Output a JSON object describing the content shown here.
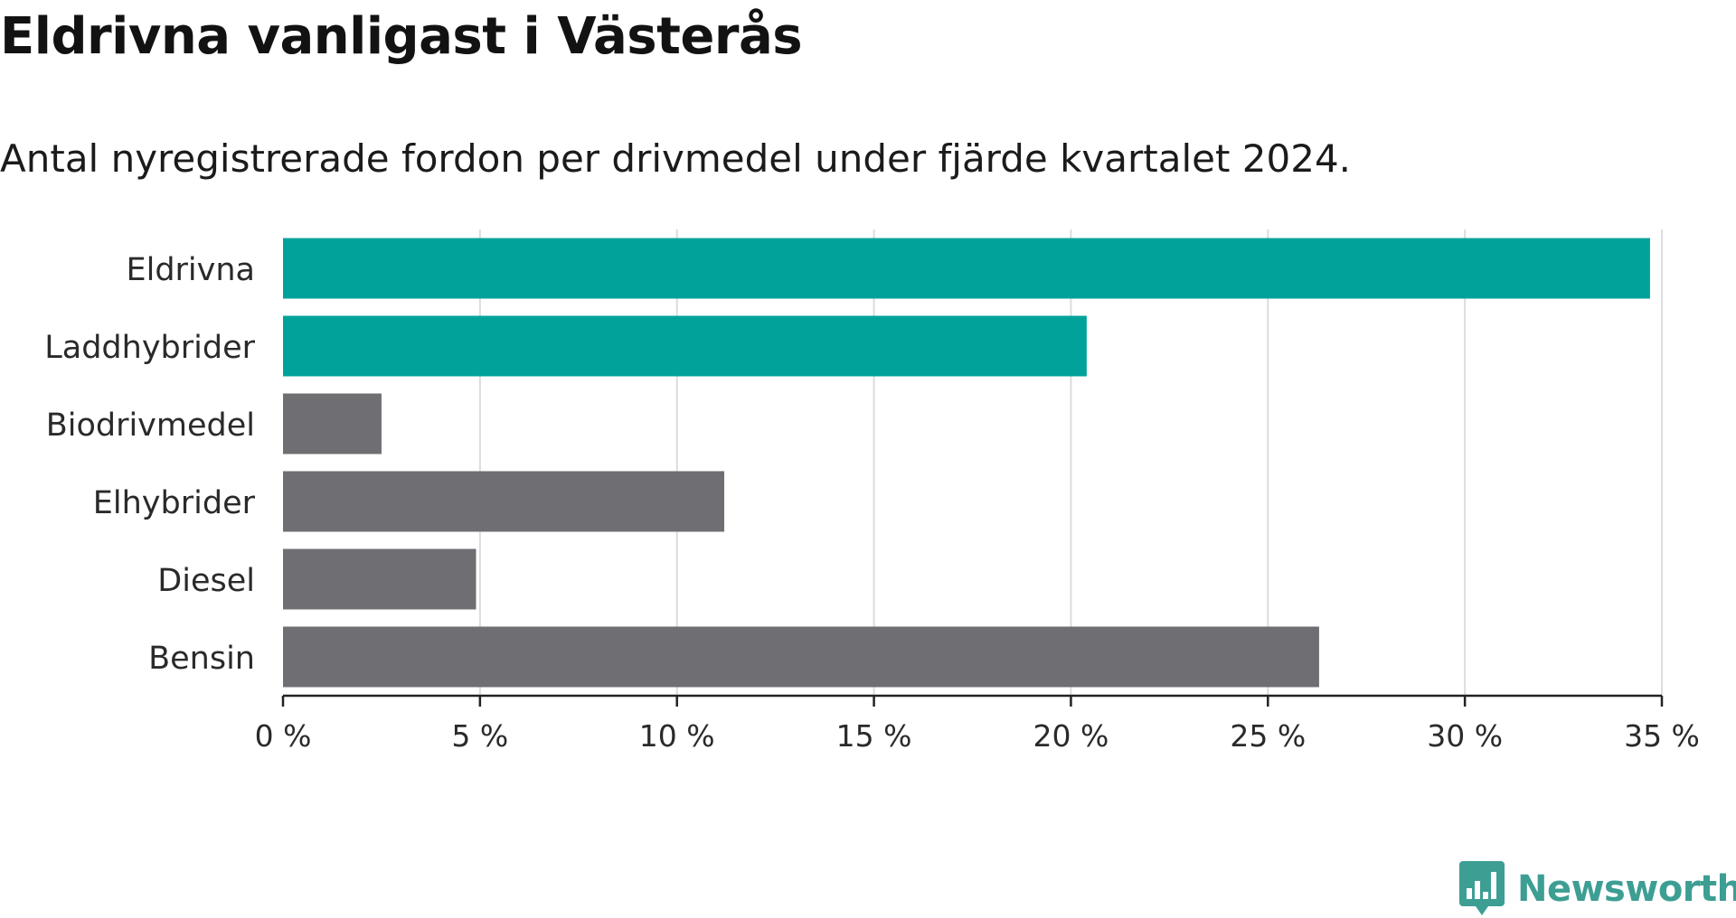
{
  "header": {
    "title": "Eldrivna vanligast i Västerås",
    "subtitle": "Antal nyregistrerade fordon per drivmedel under fjärde kvartalet 2024."
  },
  "chart_data": {
    "type": "bar",
    "orientation": "horizontal",
    "categories": [
      "Eldrivna",
      "Laddhybrider",
      "Biodrivmedel",
      "Elhybrider",
      "Diesel",
      "Bensin"
    ],
    "values": [
      34.7,
      20.4,
      2.5,
      11.2,
      4.9,
      26.3
    ],
    "highlight": [
      true,
      true,
      false,
      false,
      false,
      false
    ],
    "xlim": [
      0,
      35
    ],
    "xticks": [
      0,
      5,
      10,
      15,
      20,
      25,
      30,
      35
    ],
    "tick_suffix": " %",
    "grid": "vertical",
    "legend": "none",
    "xlabel": "",
    "ylabel": ""
  },
  "colors": {
    "highlight": "#00a29a",
    "default": "#6e6e73",
    "grid": "#dcdcdc",
    "axis": "#222222",
    "brand": "#3d9e93"
  },
  "branding": {
    "logo_text": "Newsworthy",
    "logo_icon": "bar-chart-speech-bubble-icon"
  }
}
